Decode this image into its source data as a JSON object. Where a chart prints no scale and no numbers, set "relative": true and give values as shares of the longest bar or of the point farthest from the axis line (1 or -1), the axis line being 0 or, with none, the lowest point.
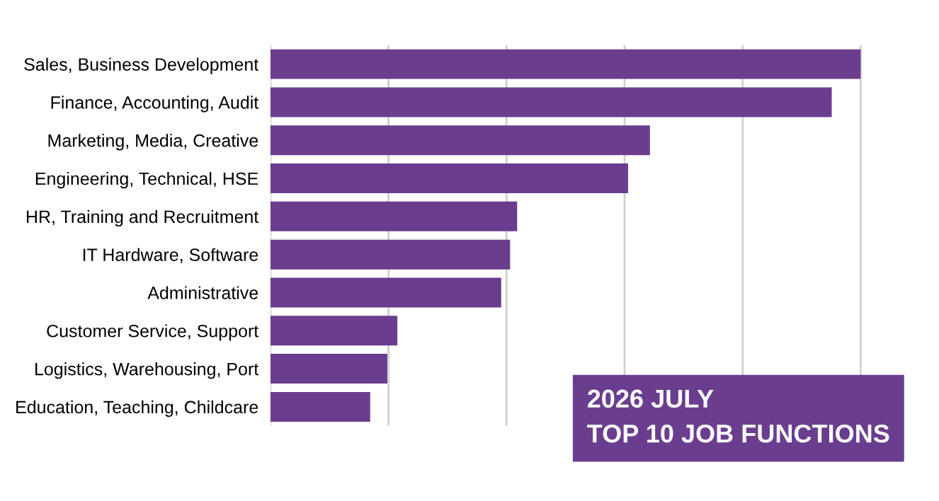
{
  "chart_data": {
    "type": "bar",
    "orientation": "horizontal",
    "relative": true,
    "title": "2026 JULY\nTOP 10 JOB FUNCTIONS",
    "categories": [
      "Sales, Business Development",
      "Finance, Accounting, Audit",
      "Marketing, Media, Creative",
      "Engineering, Technical, HSE",
      "HR, Training and Recruitment",
      "IT Hardware, Software",
      "Administrative",
      "Customer Service, Support",
      "Logistics, Warehousing, Port",
      "Education, Teaching, Childcare"
    ],
    "values": [
      1,
      0.951,
      0.643,
      0.606,
      0.418,
      0.406,
      0.391,
      0.215,
      0.198,
      0.169
    ],
    "color": "#6a3d8f",
    "grid": "x",
    "tick_labels": "y",
    "legend": false
  }
}
